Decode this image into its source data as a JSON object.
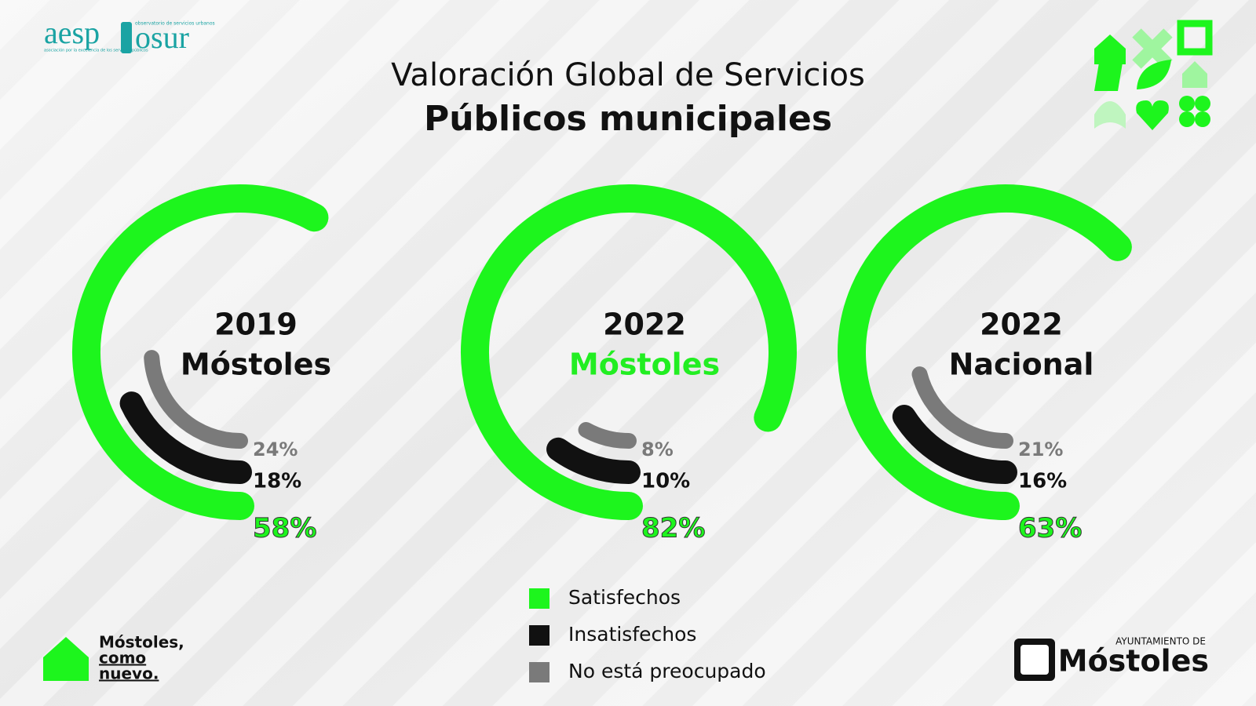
{
  "chart_data": {
    "type": "radial-bar",
    "title": "Valoración Global de Servicios",
    "subtitle": "Públicos municipales",
    "panels": [
      {
        "year": "2019",
        "place": "Móstoles",
        "color": "#111111"
      },
      {
        "year": "2022",
        "place": "Móstoles",
        "color": "#22ee22"
      },
      {
        "year": "2022",
        "place": "Nacional",
        "color": "#111111"
      }
    ],
    "full_circle": 100,
    "series": [
      {
        "name": "Satisfechos",
        "color": "#1df51d",
        "values": [
          58,
          82,
          63
        ],
        "value_labels": [
          "58%",
          "82%",
          "63%"
        ]
      },
      {
        "name": "Insatisfechos",
        "color": "#111111",
        "values": [
          18,
          10,
          16
        ],
        "value_labels": [
          "18%",
          "10%",
          "16%"
        ]
      },
      {
        "name": "No está preocupado",
        "color": "#7a7a7a",
        "values": [
          24,
          8,
          21
        ],
        "value_labels": [
          "24%",
          "8%",
          "21%"
        ]
      }
    ]
  },
  "branding": {
    "aesp_left": "aesp",
    "aesp_right": "osur",
    "aesp_tagline_1": "observatorio de servicios urbanos",
    "aesp_tagline_2": "asociación por la excelencia de los servicios públicos",
    "slogan_1": "Móstoles,",
    "slogan_2": "como",
    "slogan_3": "nuevo.",
    "council_top": "AYUNTAMIENTO DE",
    "council_name": "Móstoles"
  }
}
